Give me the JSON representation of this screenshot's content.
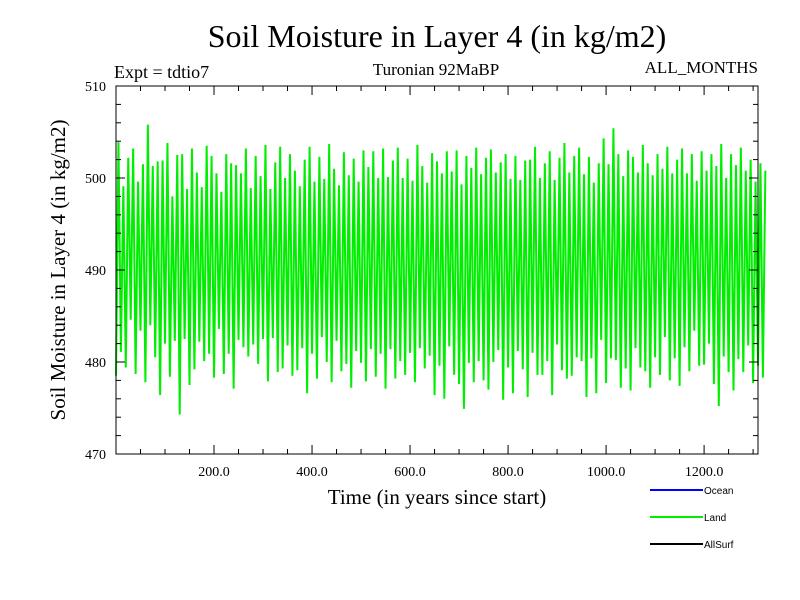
{
  "chart_data": {
    "type": "line",
    "title": "Soil Moisture in Layer 4 (in kg/m2)",
    "subtitle_left": "Expt = tdtio7",
    "subtitle_center": "Turonian  92MaBP",
    "subtitle_right": "ALL_MONTHS",
    "xlabel": "Time (in years since start)",
    "ylabel": "Soil Moisture in Layer 4 (in kg/m2)",
    "xlim": [
      0,
      1310
    ],
    "ylim": [
      470,
      510
    ],
    "x_ticks": [
      200,
      400,
      600,
      800,
      1000,
      1200
    ],
    "x_tick_labels": [
      "200.0",
      "400.0",
      "600.0",
      "800.0",
      "1000.0",
      "1200.0"
    ],
    "y_ticks": [
      470,
      480,
      490,
      500,
      510
    ],
    "y_tick_labels": [
      "470",
      "480",
      "490",
      "500",
      "510"
    ],
    "legend": [
      {
        "name": "Ocean",
        "color": "#0000ff"
      },
      {
        "name": "Land",
        "color": "#00ee00"
      },
      {
        "name": "AllSurf",
        "color": "#000000"
      }
    ],
    "legend_position": "bottom-right",
    "series": [
      {
        "name": "Land",
        "color": "#00ee00",
        "start_x": 0,
        "step_x": 5,
        "values": [
          478.5,
          503.9,
          481.1,
          499.1,
          479.4,
          502.2,
          484.6,
          503.2,
          478.7,
          499.6,
          483.4,
          501.5,
          477.8,
          505.8,
          484.0,
          501.3,
          480.5,
          501.8,
          476.4,
          501.9,
          482.0,
          503.8,
          478.4,
          498.0,
          482.3,
          502.5,
          474.3,
          502.6,
          482.5,
          498.8,
          477.5,
          503.2,
          479.2,
          500.6,
          482.2,
          499.0,
          480.1,
          503.5,
          480.9,
          502.4,
          478.3,
          500.5,
          483.6,
          498.5,
          478.7,
          502.6,
          480.9,
          501.6,
          477.1,
          501.4,
          482.4,
          500.5,
          481.6,
          503.2,
          480.6,
          498.9,
          481.9,
          502.4,
          479.8,
          500.2,
          482.5,
          503.6,
          477.9,
          498.8,
          482.6,
          501.7,
          478.9,
          503.4,
          479.3,
          500.0,
          481.8,
          502.6,
          478.5,
          500.8,
          479.1,
          499.1,
          481.5,
          502.0,
          476.6,
          503.4,
          480.9,
          499.6,
          478.2,
          502.3,
          482.7,
          499.9,
          480.0,
          503.7,
          477.8,
          501.0,
          482.3,
          499.2,
          479.0,
          502.8,
          479.8,
          500.3,
          477.2,
          502.1,
          481.2,
          499.6,
          479.9,
          503.0,
          477.9,
          501.2,
          481.4,
          502.9,
          478.4,
          500.0,
          480.9,
          503.2,
          477.1,
          500.1,
          481.4,
          501.9,
          478.2,
          503.3,
          480.1,
          500.0,
          478.6,
          502.1,
          481.0,
          499.7,
          477.8,
          503.6,
          481.5,
          501.3,
          479.3,
          499.5,
          480.7,
          502.7,
          476.4,
          501.8,
          479.6,
          500.5,
          476.0,
          502.9,
          481.7,
          500.7,
          478.6,
          503.0,
          477.6,
          499.3,
          474.9,
          502.4,
          479.9,
          501.1,
          477.8,
          503.3,
          480.1,
          500.4,
          478.0,
          502.2,
          477.0,
          503.1,
          480.0,
          500.6,
          481.3,
          501.7,
          475.9,
          502.6,
          479.4,
          499.9,
          476.6,
          502.4,
          481.2,
          499.8,
          479.2,
          501.9,
          476.2,
          502.0,
          481.0,
          503.4,
          478.6,
          500.0,
          478.6,
          501.6,
          480.1,
          502.9,
          476.4,
          499.8,
          481.9,
          502.2,
          479.1,
          503.8,
          478.2,
          500.6,
          478.5,
          502.4,
          480.5,
          503.3,
          480.1,
          500.4,
          476.2,
          502.3,
          480.4,
          499.5,
          476.6,
          501.6,
          482.4,
          504.3,
          477.7,
          501.5,
          480.4,
          505.4,
          480.2,
          502.6,
          477.2,
          500.2,
          479.3,
          503.0,
          476.9,
          502.3,
          481.5,
          500.6,
          479.4,
          503.6,
          479.0,
          501.6,
          477.2,
          500.3,
          480.5,
          502.6,
          478.6,
          501.0,
          482.7,
          503.4,
          478.0,
          500.5,
          480.4,
          502.0,
          477.4,
          503.2,
          481.6,
          500.5,
          479.0,
          502.6,
          483.4,
          499.7,
          479.6,
          502.9,
          479.7,
          500.8,
          482.0,
          502.6,
          477.6,
          501.3,
          475.2,
          503.7,
          480.6,
          500.0,
          478.9,
          502.6,
          476.9,
          501.4,
          480.3,
          503.3,
          478.9,
          500.8,
          481.8,
          502.0,
          477.7,
          499.6,
          479.6,
          501.6,
          478.3,
          500.8
        ]
      }
    ]
  }
}
